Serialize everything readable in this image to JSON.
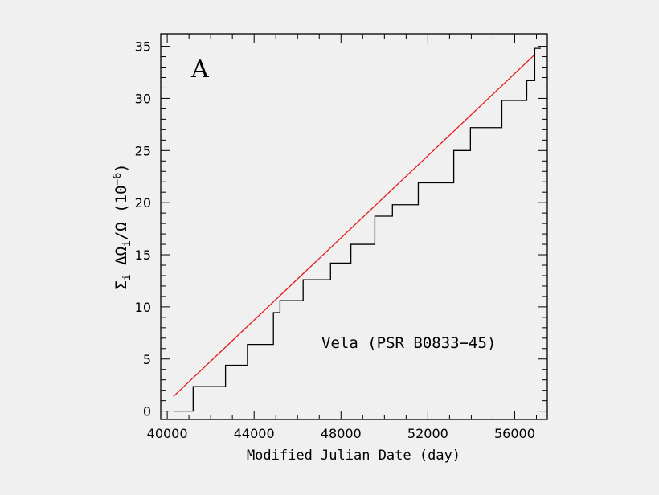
{
  "chart_data": {
    "type": "line",
    "panel_label": "A",
    "annotation": "Vela (PSR B0833−45)",
    "xlabel": "Modified Julian Date (day)",
    "ylabel_parts": {
      "sigma": "Σ",
      "sub_i": "i",
      "delta_omega": "ΔΩ",
      "sub_i2": "i",
      "over_omega": "/Ω",
      "unit": "(10",
      "exp": "−6",
      "close": ")"
    },
    "xlim": [
      39700,
      57500
    ],
    "ylim": [
      -0.8,
      36.2
    ],
    "xticks": [
      40000,
      44000,
      48000,
      52000,
      56000
    ],
    "yticks": [
      0,
      5,
      10,
      15,
      20,
      25,
      30,
      35
    ],
    "grid": false,
    "series": [
      {
        "kind": "step",
        "color": "#000000",
        "x": [
          40280,
          41192,
          42683,
          43693,
          44889,
          45192,
          46257,
          47519,
          48457,
          49559,
          50369,
          51559,
          53193,
          53960,
          55408,
          56555,
          56922
        ],
        "y": [
          0.0,
          2.35,
          4.4,
          6.4,
          9.45,
          10.6,
          12.6,
          14.2,
          16.0,
          18.7,
          19.8,
          21.9,
          25.0,
          27.2,
          29.8,
          31.7,
          34.8
        ]
      },
      {
        "kind": "line",
        "color": "#e41a1c",
        "x": [
          40280,
          56922
        ],
        "y": [
          1.4,
          34.2
        ]
      }
    ]
  }
}
